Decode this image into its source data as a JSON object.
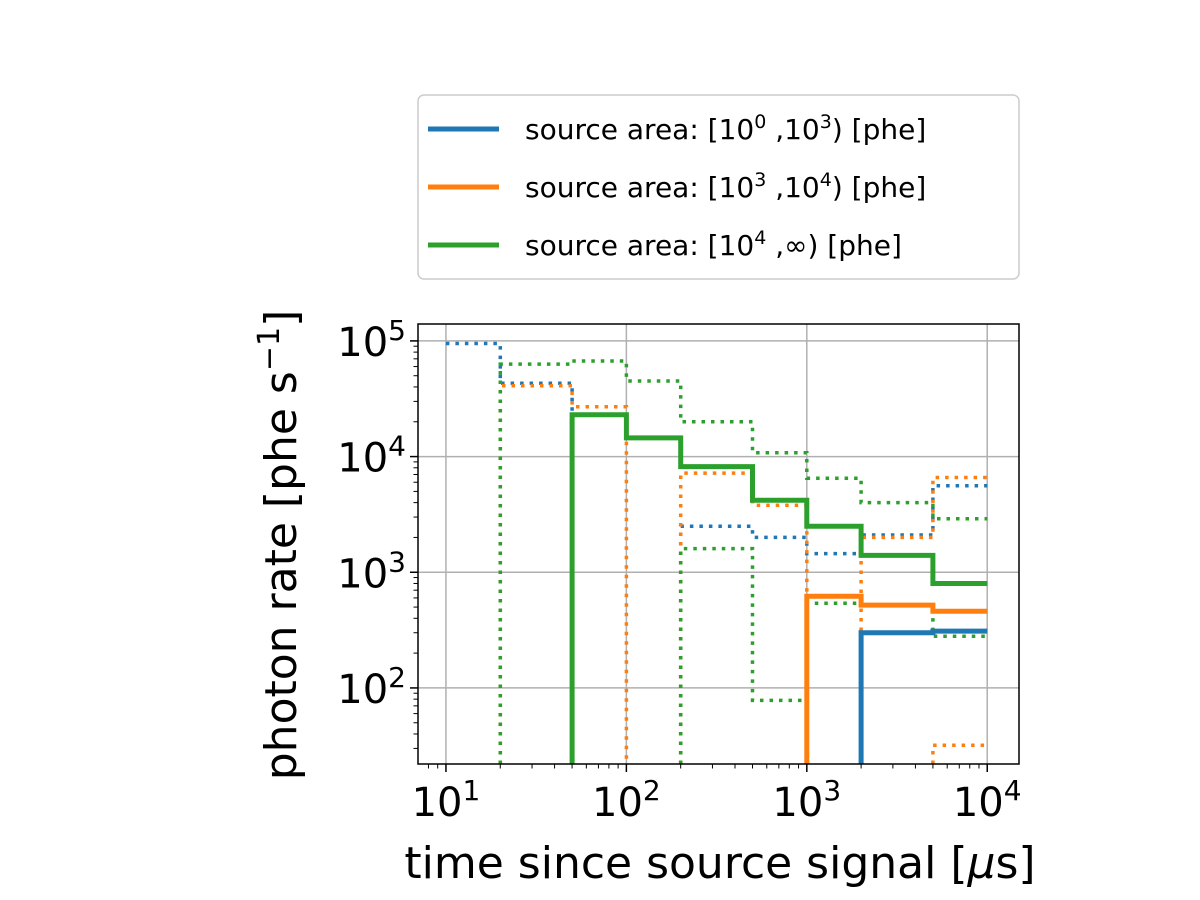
{
  "chart_data": {
    "type": "line",
    "step": "post",
    "xscale": "log",
    "yscale": "log",
    "xlim": [
      7,
      15000
    ],
    "ylim": [
      22,
      140000
    ],
    "grid": true,
    "legend_placement": "above-plot",
    "xlabel_parts": [
      "time since source signal [",
      "μ",
      "s]"
    ],
    "ylabel_parts": [
      "photon rate [phe s",
      "−1",
      "]"
    ],
    "x_ticks": [
      {
        "value": 10,
        "base": "10",
        "exp": "1"
      },
      {
        "value": 100,
        "base": "10",
        "exp": "2"
      },
      {
        "value": 1000,
        "base": "10",
        "exp": "3"
      },
      {
        "value": 10000,
        "base": "10",
        "exp": "4"
      }
    ],
    "y_ticks": [
      {
        "value": 100,
        "base": "10",
        "exp": "2"
      },
      {
        "value": 1000,
        "base": "10",
        "exp": "3"
      },
      {
        "value": 10000,
        "base": "10",
        "exp": "4"
      },
      {
        "value": 100000,
        "base": "10",
        "exp": "5"
      }
    ],
    "bin_edges": [
      10,
      20,
      50,
      100,
      200,
      500,
      1000,
      2000,
      5000,
      10000
    ],
    "series": [
      {
        "legend": {
          "prefix": "source area: [10",
          "sup1": "0",
          "mid": " ,10",
          "sup2": "3",
          "suffix": ") [phe]"
        },
        "color": "#1f77b4",
        "solid": [
          null,
          null,
          null,
          null,
          null,
          null,
          null,
          300,
          310
        ],
        "dotted": [
          95000,
          43000,
          null,
          null,
          2500,
          2000,
          1450,
          2100,
          5600
        ]
      },
      {
        "legend": {
          "prefix": "source area: [10",
          "sup1": "3",
          "mid": " ,10",
          "sup2": "4",
          "suffix": ") [phe]"
        },
        "color": "#ff7f0e",
        "solid": [
          null,
          null,
          null,
          null,
          null,
          null,
          620,
          520,
          460
        ],
        "dotted": [
          null,
          41000,
          27000,
          null,
          7200,
          3800,
          null,
          2000,
          6600
        ],
        "dotted_extra": [
          {
            "x0": 5000,
            "x1": 10000,
            "y": 32
          }
        ]
      },
      {
        "legend": {
          "prefix": "source area: [10",
          "sup1": "4",
          "mid": " ,",
          "sup2": "",
          "suffix": "∞) [phe]"
        },
        "color": "#2ca02c",
        "solid": [
          null,
          null,
          23000,
          14500,
          8200,
          4200,
          2500,
          1400,
          800
        ],
        "dotted": [
          null,
          63000,
          67000,
          45000,
          20000,
          10800,
          6500,
          4000,
          2900
        ],
        "dotted_low": [
          null,
          null,
          null,
          null,
          1600,
          78,
          540,
          520,
          280
        ]
      }
    ]
  }
}
